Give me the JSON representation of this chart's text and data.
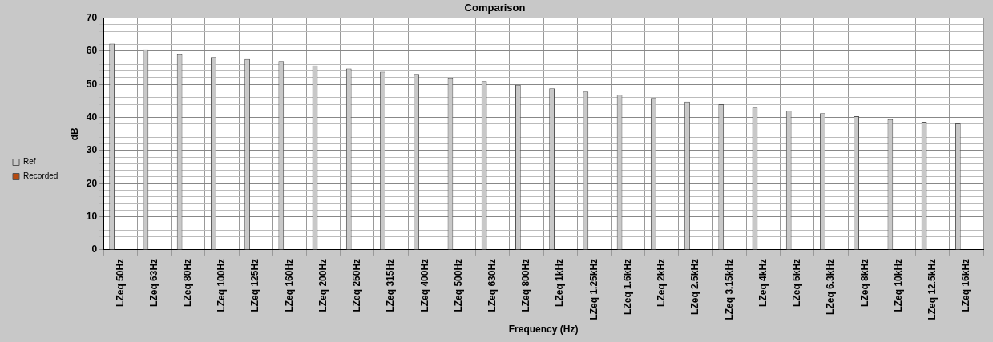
{
  "chart_data": {
    "type": "bar",
    "title": "Comparison",
    "xlabel": "Frequency (Hz)",
    "ylabel": "dB",
    "categories": [
      "LZeq 50Hz",
      "LZeq 63Hz",
      "LZeq 80Hz",
      "LZeq 100Hz",
      "LZeq 125Hz",
      "LZeq 160Hz",
      "LZeq 200Hz",
      "LZeq 250Hz",
      "LZeq 315Hz",
      "LZeq 400Hz",
      "LZeq 500Hz",
      "LZeq 630Hz",
      "LZeq 800Hz",
      "LZeq 1kHz",
      "LZeq 1.25kHz",
      "LZeq 1.6kHz",
      "LZeq 2kHz",
      "LZeq 2.5kHz",
      "LZeq 3.15kHz",
      "LZeq 4kHz",
      "LZeq 5kHz",
      "LZeq 6.3kHz",
      "LZeq 8kHz",
      "LZeq 10kHz",
      "LZeq 12.5kHz",
      "LZeq 16kHz"
    ],
    "series": [
      {
        "name": "Ref",
        "color": "#c8c8c8",
        "values": [
          62.3,
          60.5,
          59.1,
          58.2,
          57.6,
          57.0,
          55.7,
          54.8,
          53.8,
          52.9,
          51.8,
          51.0,
          49.9,
          48.8,
          47.8,
          46.9,
          45.9,
          44.8,
          44.0,
          43.0,
          42.1,
          41.3,
          40.4,
          39.5,
          38.7,
          38.2
        ]
      },
      {
        "name": "Recorded",
        "color": "#b84a0f",
        "values": [
          null,
          null,
          null,
          null,
          null,
          null,
          null,
          null,
          null,
          null,
          null,
          null,
          null,
          null,
          null,
          null,
          null,
          null,
          null,
          null,
          null,
          null,
          null,
          null,
          null,
          null
        ]
      }
    ],
    "ylim": [
      0,
      70
    ],
    "yticks": [
      0,
      {
        "value": 2,
        "label": null
      },
      {
        "value": 4,
        "label": null
      },
      {
        "value": 6,
        "label": null
      },
      {
        "value": 8,
        "label": null
      },
      10,
      {
        "value": 12,
        "label": null
      },
      {
        "value": 14,
        "label": null
      },
      {
        "value": 16,
        "label": null
      },
      {
        "value": 18,
        "label": null
      },
      20,
      {
        "value": 22,
        "label": null
      },
      {
        "value": 24,
        "label": null
      },
      {
        "value": 26,
        "label": null
      },
      {
        "value": 28,
        "label": null
      },
      30,
      {
        "value": 32,
        "label": null
      },
      {
        "value": 34,
        "label": null
      },
      {
        "value": 36,
        "label": null
      },
      {
        "value": 38,
        "label": null
      },
      40,
      {
        "value": 42,
        "label": null
      },
      {
        "value": 44,
        "label": null
      },
      {
        "value": 46,
        "label": null
      },
      {
        "value": 48,
        "label": null
      },
      50,
      {
        "value": 52,
        "label": null
      },
      {
        "value": 54,
        "label": null
      },
      {
        "value": 56,
        "label": null
      },
      {
        "value": 58,
        "label": null
      },
      60,
      {
        "value": 62,
        "label": null
      },
      {
        "value": 64,
        "label": null
      },
      {
        "value": 66,
        "label": null
      },
      {
        "value": 68,
        "label": null
      },
      70
    ],
    "grid": true,
    "legend": "left"
  }
}
